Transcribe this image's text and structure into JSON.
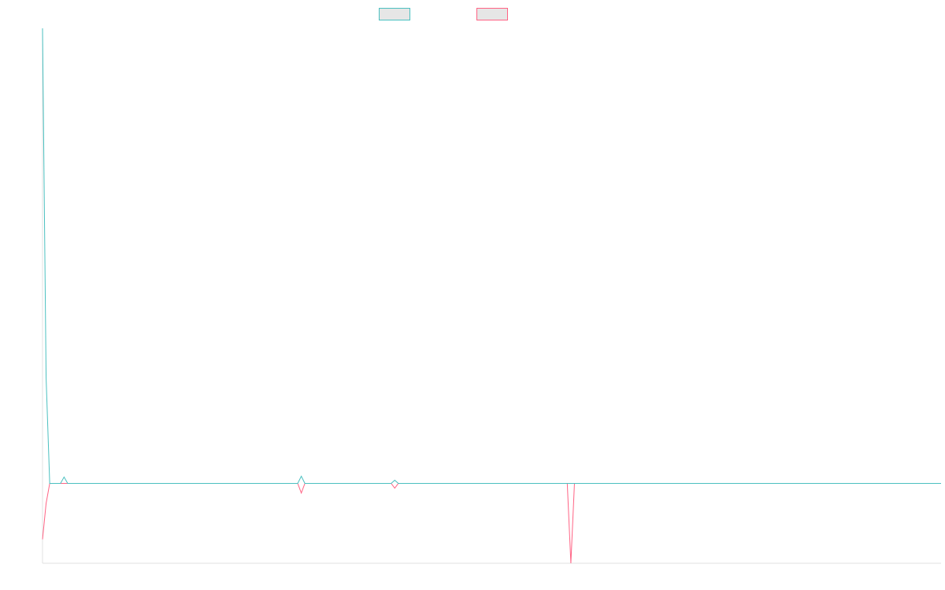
{
  "chart_data": {
    "type": "line",
    "x": [
      0,
      1,
      2,
      5,
      6,
      7,
      71,
      72,
      73,
      97,
      98,
      99,
      146,
      147,
      148,
      250
    ],
    "xlim": [
      0,
      250
    ],
    "ylim": [
      -100,
      570
    ],
    "series": [
      {
        "color": "#4bc0c0",
        "values": [
          570,
          132,
          0,
          0,
          8,
          0,
          0,
          9,
          0,
          0,
          4,
          0,
          0,
          0,
          0,
          0
        ]
      },
      {
        "color": "#ff6384",
        "values": [
          -70,
          -25,
          0,
          0,
          0,
          0,
          0,
          -12,
          0,
          0,
          -6,
          0,
          0,
          -100,
          0,
          0
        ]
      }
    ]
  }
}
